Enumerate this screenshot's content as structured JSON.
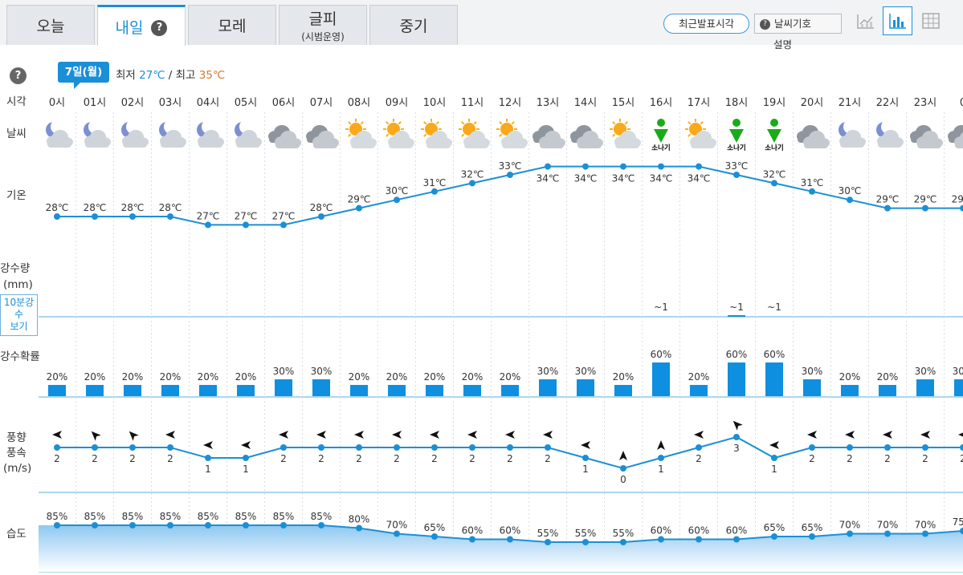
{
  "tabs": [
    {
      "label": "오늘",
      "sub": ""
    },
    {
      "label": "내일",
      "sub": "",
      "active": true
    },
    {
      "label": "모레",
      "sub": ""
    },
    {
      "label": "글피",
      "sub": "(시범운영)"
    },
    {
      "label": "중기",
      "sub": ""
    }
  ],
  "toolbar": {
    "recent_label": "최근발표시각",
    "symbol_label": "날씨기호",
    "symbol_desc": "설명"
  },
  "date": {
    "badge": "7일(월)",
    "min_label": "최저",
    "min_value": "27℃",
    "sep": "/",
    "max_label": "최고",
    "max_value": "35℃"
  },
  "row_labels": {
    "time": "시각",
    "weather": "날씨",
    "temp": "기온",
    "precip": "강수량",
    "precip_unit": "(mm)",
    "tenmin_line1": "10분강",
    "tenmin_line2": "수",
    "tenmin_line3": "보기",
    "prob": "강수확률",
    "wind1": "풍향",
    "wind2": "풍속",
    "wind3": "(m/s)",
    "humidity": "습도"
  },
  "help_glyph": "?",
  "shower_label": "소나기",
  "hours": [
    "0시",
    "01시",
    "02시",
    "03시",
    "04시",
    "05시",
    "06시",
    "07시",
    "08시",
    "09시",
    "10시",
    "11시",
    "12시",
    "13시",
    "14시",
    "15시",
    "16시",
    "17시",
    "18시",
    "19시",
    "20시",
    "21시",
    "22시",
    "23시",
    "0"
  ],
  "weather": [
    "night-partly",
    "night-partly",
    "night-partly",
    "night-partly",
    "night-partly",
    "night-partly",
    "cloudy",
    "cloudy",
    "sun-cloud",
    "sun-cloud",
    "sun-cloud",
    "sun-cloud",
    "sun-cloud",
    "cloudy",
    "cloudy",
    "sun-cloud",
    "shower",
    "sun-cloud",
    "shower",
    "shower",
    "cloudy",
    "night-partly",
    "night-partly",
    "cloudy",
    "cloudy"
  ],
  "temps": [
    28,
    28,
    28,
    28,
    27,
    27,
    27,
    28,
    29,
    30,
    31,
    32,
    33,
    34,
    34,
    34,
    34,
    34,
    33,
    32,
    31,
    30,
    29,
    29,
    29
  ],
  "precip": [
    "",
    "",
    "",
    "",
    "",
    "",
    "",
    "",
    "",
    "",
    "",
    "",
    "",
    "",
    "",
    "",
    "~1",
    "",
    "~1",
    "~1",
    "",
    "",
    "",
    "",
    ""
  ],
  "prob": [
    20,
    20,
    20,
    20,
    20,
    20,
    30,
    30,
    20,
    20,
    20,
    20,
    20,
    30,
    30,
    20,
    60,
    20,
    60,
    60,
    30,
    20,
    20,
    30,
    30
  ],
  "wind_speed": [
    2,
    2,
    2,
    2,
    1,
    1,
    2,
    2,
    2,
    2,
    2,
    2,
    2,
    2,
    1,
    0,
    1,
    2,
    3,
    1,
    2,
    2,
    2,
    2,
    2
  ],
  "wind_dir": [
    "W",
    "NW",
    "NW",
    "W",
    "W",
    "W",
    "W",
    "W",
    "W",
    "W",
    "W",
    "W",
    "W",
    "W",
    "W",
    "N",
    "N",
    "W",
    "NW",
    "W",
    "W",
    "W",
    "W",
    "W",
    "W"
  ],
  "humidity": [
    85,
    85,
    85,
    85,
    85,
    85,
    85,
    85,
    80,
    70,
    65,
    60,
    60,
    55,
    55,
    55,
    60,
    60,
    60,
    65,
    65,
    70,
    70,
    70,
    75
  ],
  "colors": {
    "accent": "#1b8fd6",
    "line": "#1b8fd6",
    "bar": "#0f8fdf",
    "shower": "#1aab1a",
    "hi": "#d27a2a"
  }
}
